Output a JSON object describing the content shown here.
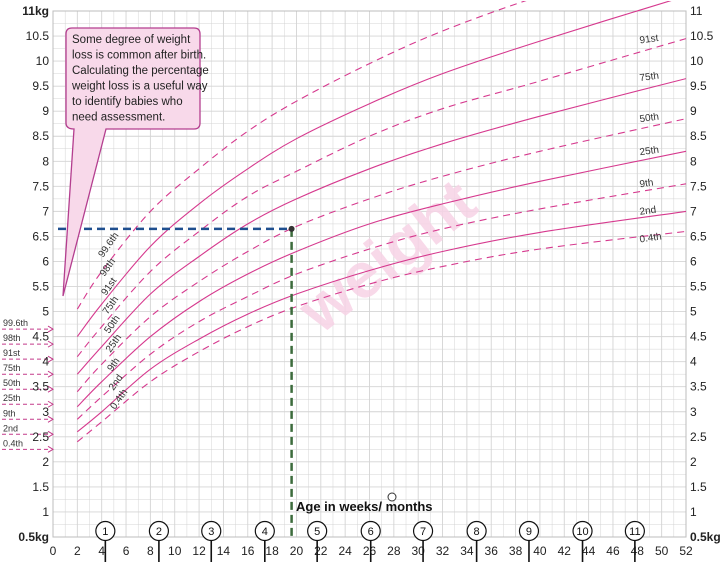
{
  "chart_data": {
    "type": "line",
    "title": "",
    "watermark": "weight",
    "xlabel": "Age in weeks/ months",
    "ylabel": "",
    "xlim": [
      0,
      52
    ],
    "ylim": [
      0.5,
      11
    ],
    "x_ticks": [
      "0",
      "2",
      "4",
      "6",
      "8",
      "10",
      "12",
      "14",
      "16",
      "18",
      "20",
      "22",
      "24",
      "26",
      "28",
      "30",
      "32",
      "34",
      "36",
      "38",
      "40",
      "42",
      "44",
      "46",
      "48",
      "50",
      "52"
    ],
    "y_ticks_left": [
      "11kg",
      "10.5",
      "10",
      "9.5",
      "9",
      "8.5",
      "8",
      "7.5",
      "7",
      "6.5",
      "6",
      "5.5",
      "5",
      "4.5",
      "4",
      "3.5",
      "3",
      "2.5",
      "2",
      "1.5",
      "1",
      "0.5kg"
    ],
    "y_ticks_right": [
      "11",
      "10.5",
      "10",
      "9.5",
      "9",
      "8.5",
      "8",
      "7.5",
      "7",
      "6.5",
      "6",
      "5.5",
      "5",
      "4.5",
      "4",
      "3.5",
      "3",
      "2.5",
      "2",
      "1.5",
      "1",
      "0.5kg"
    ],
    "months": [
      {
        "label": "1",
        "week": 4.3
      },
      {
        "label": "2",
        "week": 8.7
      },
      {
        "label": "3",
        "week": 13
      },
      {
        "label": "4",
        "week": 17.4
      },
      {
        "label": "5",
        "week": 21.7
      },
      {
        "label": "6",
        "week": 26.1
      },
      {
        "label": "7",
        "week": 30.4
      },
      {
        "label": "8",
        "week": 34.8
      },
      {
        "label": "9",
        "week": 39.1
      },
      {
        "label": "10",
        "week": 43.5
      },
      {
        "label": "11",
        "week": 47.8
      }
    ],
    "series": [
      {
        "name": "0.4th",
        "style": "dashed",
        "x": [
          2,
          4,
          8,
          12,
          16,
          20,
          26,
          32,
          40,
          52
        ],
        "y": [
          2.4,
          2.8,
          3.6,
          4.2,
          4.7,
          5.1,
          5.55,
          5.9,
          6.25,
          6.6
        ]
      },
      {
        "name": "2nd",
        "style": "solid",
        "x": [
          2,
          4,
          8,
          12,
          16,
          20,
          26,
          32,
          40,
          52
        ],
        "y": [
          2.6,
          3.0,
          3.85,
          4.45,
          4.95,
          5.35,
          5.82,
          6.2,
          6.58,
          7.0
        ]
      },
      {
        "name": "9th",
        "style": "dashed",
        "x": [
          2,
          4,
          8,
          12,
          16,
          20,
          26,
          32,
          40,
          52
        ],
        "y": [
          2.85,
          3.3,
          4.15,
          4.8,
          5.3,
          5.75,
          6.25,
          6.65,
          7.05,
          7.55
        ]
      },
      {
        "name": "25th",
        "style": "solid",
        "x": [
          2,
          4,
          8,
          12,
          16,
          20,
          26,
          32,
          40,
          52
        ],
        "y": [
          3.1,
          3.6,
          4.5,
          5.2,
          5.75,
          6.2,
          6.75,
          7.15,
          7.6,
          8.2
        ]
      },
      {
        "name": "50th",
        "style": "dashed",
        "x": [
          2,
          4,
          8,
          12,
          16,
          20,
          26,
          32,
          40,
          52
        ],
        "y": [
          3.4,
          3.95,
          4.9,
          5.6,
          6.2,
          6.7,
          7.25,
          7.7,
          8.2,
          8.85
        ]
      },
      {
        "name": "75th",
        "style": "solid",
        "x": [
          2,
          4,
          8,
          12,
          16,
          20,
          26,
          32,
          40,
          52
        ],
        "y": [
          3.75,
          4.3,
          5.35,
          6.1,
          6.75,
          7.25,
          7.85,
          8.35,
          8.9,
          9.65
        ]
      },
      {
        "name": "91st",
        "style": "dashed",
        "x": [
          2,
          4,
          8,
          12,
          16,
          20,
          26,
          32,
          40,
          52
        ],
        "y": [
          4.1,
          4.7,
          5.8,
          6.6,
          7.3,
          7.8,
          8.5,
          9.05,
          9.6,
          10.45
        ]
      },
      {
        "name": "98th",
        "style": "solid",
        "x": [
          2,
          4,
          8,
          12,
          16,
          20,
          26,
          32,
          40,
          52
        ],
        "y": [
          4.5,
          5.15,
          6.3,
          7.15,
          7.85,
          8.45,
          9.15,
          9.75,
          10.4,
          11.3
        ]
      },
      {
        "name": "99.6th",
        "style": "dashed",
        "x": [
          2,
          4,
          8,
          12,
          16,
          20,
          26,
          32,
          40,
          52
        ],
        "y": [
          5.05,
          5.8,
          7.0,
          7.85,
          8.6,
          9.2,
          9.95,
          10.6,
          11.3,
          12.2
        ]
      }
    ],
    "right_labels": [
      {
        "text": "91st",
        "y": 10.35
      },
      {
        "text": "75th",
        "y": 9.6
      },
      {
        "text": "50th",
        "y": 8.78
      },
      {
        "text": "25th",
        "y": 8.12
      },
      {
        "text": "9th",
        "y": 7.48
      },
      {
        "text": "2nd",
        "y": 6.93
      },
      {
        "text": "0.4th",
        "y": 6.38
      }
    ],
    "start_labels": [
      "99.6th",
      "98th",
      "91st",
      "75th",
      "50th",
      "25th",
      "9th",
      "2nd",
      "0.4th"
    ],
    "birth_markers": [
      {
        "text": "99.6th",
        "y": 4.65
      },
      {
        "text": "98th",
        "y": 4.35
      },
      {
        "text": "91st",
        "y": 4.05
      },
      {
        "text": "75th",
        "y": 3.75
      },
      {
        "text": "50th",
        "y": 3.45
      },
      {
        "text": "25th",
        "y": 3.15
      },
      {
        "text": "9th",
        "y": 2.85
      },
      {
        "text": "2nd",
        "y": 2.55
      },
      {
        "text": "0.4th",
        "y": 2.25
      }
    ],
    "marker_point": {
      "x": 19.6,
      "y": 6.65
    },
    "callout_text": [
      "Some degree of weight",
      "loss is common after birth.",
      "Calculating the percentage",
      "weight loss is a useful way",
      "to identify babies who",
      "need assessment."
    ],
    "colors": {
      "grid": "#d4d4d4",
      "curve": "#d6398e",
      "callout_fill": "#f8d9ea",
      "callout_stroke": "#b43e8f",
      "guide_h": "#1f4f8f",
      "guide_v": "#3c6b3c",
      "birth_arrow": "#c43a8a"
    }
  }
}
